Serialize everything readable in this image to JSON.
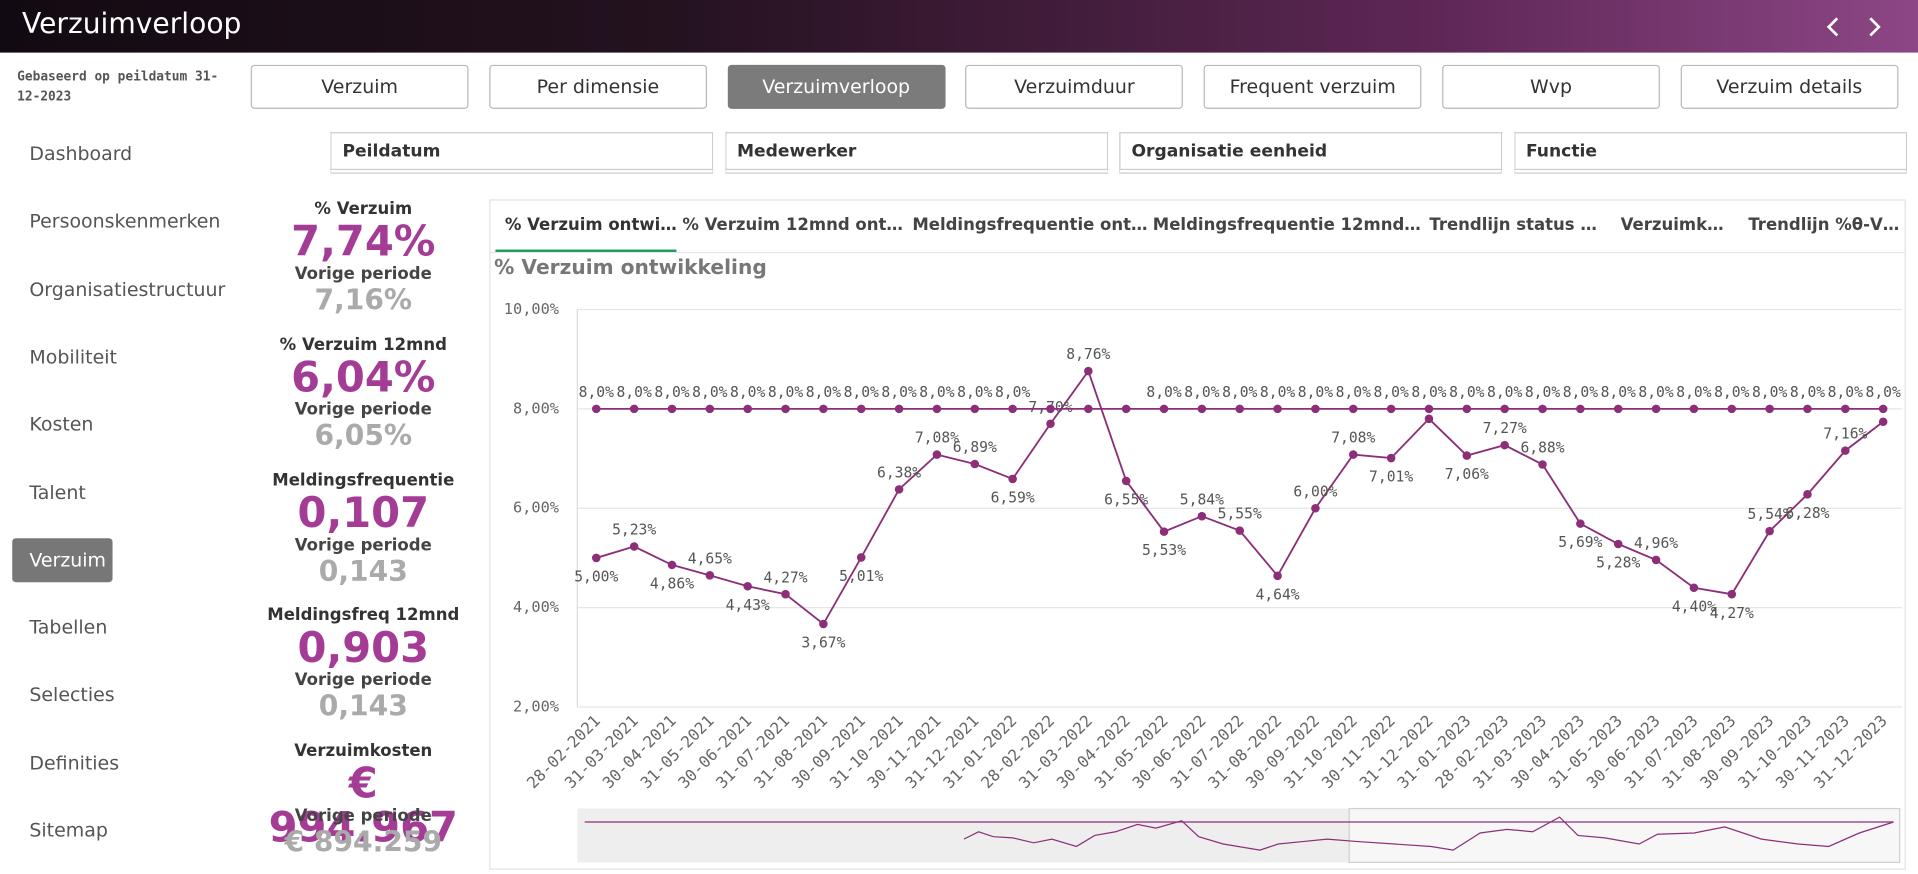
{
  "header": {
    "title": "Verzuimverloop"
  },
  "subheader": "Gebaseerd op peildatum 31-12-2023",
  "tabs": [
    {
      "label": "Verzuim",
      "active": false
    },
    {
      "label": "Per dimensie",
      "active": false
    },
    {
      "label": "Verzuimverloop",
      "active": true
    },
    {
      "label": "Verzuimduur",
      "active": false
    },
    {
      "label": "Frequent verzuim",
      "active": false
    },
    {
      "label": "Wvp",
      "active": false
    },
    {
      "label": "Verzuim details",
      "active": false
    }
  ],
  "sidebar": [
    {
      "label": "Dashboard",
      "active": false
    },
    {
      "label": "Persoonskenmerken",
      "active": false
    },
    {
      "label": "Organisatiestructuur",
      "active": false
    },
    {
      "label": "Mobiliteit",
      "active": false
    },
    {
      "label": "Kosten",
      "active": false
    },
    {
      "label": "Talent",
      "active": false
    },
    {
      "label": "Verzuim",
      "active": true
    },
    {
      "label": "Tabellen",
      "active": false
    },
    {
      "label": "Selecties",
      "active": false
    },
    {
      "label": "Definities",
      "active": false
    },
    {
      "label": "Sitemap",
      "active": false
    }
  ],
  "filters": [
    "Peildatum",
    "Medewerker",
    "Organisatie eenheid",
    "Functie"
  ],
  "kpis": [
    {
      "label": "% Verzuim",
      "value": "7,74%",
      "previous_label": "Vorige periode",
      "previous_value": "7,16%"
    },
    {
      "label": "% Verzuim 12mnd",
      "value": "6,04%",
      "previous_label": "Vorige periode",
      "previous_value": "6,05%"
    },
    {
      "label": "Meldingsfrequentie",
      "value": "0,107",
      "previous_label": "Vorige periode",
      "previous_value": "0,143"
    },
    {
      "label": "Meldingsfreq 12mnd",
      "value": "0,903",
      "previous_label": "Vorige periode",
      "previous_value": "0,143"
    },
    {
      "label": "Verzuimkosten",
      "value": "€ 994.967",
      "previous_label": "Vorige periode",
      "previous_value": "€ 894.259"
    }
  ],
  "chart_tabs": [
    {
      "label": "% Verzuim ontwi…",
      "active": true
    },
    {
      "label": "% Verzuim 12mnd ont…",
      "active": false
    },
    {
      "label": "Meldingsfrequentie ont…",
      "active": false
    },
    {
      "label": "Meldingsfrequentie 12mnd…",
      "active": false
    },
    {
      "label": "Trendlijn status …",
      "active": false
    },
    {
      "label": "Verzuimk…",
      "active": false
    },
    {
      "label": "Trendlijn %θ-V…",
      "active": false
    }
  ],
  "chart_data": {
    "type": "line",
    "title": "% Verzuim ontwikkeling",
    "categories": [
      "28-02-2021",
      "31-03-2021",
      "30-04-2021",
      "31-05-2021",
      "30-06-2021",
      "31-07-2021",
      "31-08-2021",
      "30-09-2021",
      "31-10-2021",
      "30-11-2021",
      "31-12-2021",
      "31-01-2022",
      "28-02-2022",
      "31-03-2022",
      "30-04-2022",
      "31-05-2022",
      "30-06-2022",
      "31-07-2022",
      "31-08-2022",
      "30-09-2022",
      "31-10-2022",
      "30-11-2022",
      "31-12-2022",
      "31-01-2023",
      "28-02-2023",
      "31-03-2023",
      "30-04-2023",
      "31-05-2023",
      "30-06-2023",
      "31-07-2023",
      "31-08-2023",
      "30-09-2023",
      "31-10-2023",
      "30-11-2023",
      "31-12-2023"
    ],
    "series": [
      {
        "color": "#8c2f78",
        "values": [
          5.0,
          5.23,
          4.86,
          4.65,
          4.43,
          4.27,
          3.67,
          5.01,
          6.38,
          7.08,
          6.89,
          6.59,
          7.7,
          8.76,
          6.55,
          5.53,
          5.84,
          5.55,
          4.64,
          6.0,
          7.08,
          7.01,
          7.8,
          7.06,
          7.27,
          6.88,
          5.69,
          5.28,
          4.96,
          4.4,
          4.27,
          5.54,
          6.28,
          7.16,
          7.74
        ],
        "value_labels": [
          "5,00%",
          "5,23%",
          "4,86%",
          "4,65%",
          "4,43%",
          "4,27%",
          "3,67%",
          "5,01%",
          "6,38%",
          "7,08%",
          "6,89%",
          "6,59%",
          "7,70%",
          "8,76%",
          "6,55%",
          "5,53%",
          "5,84%",
          "5,55%",
          "4,64%",
          "6,00%",
          "7,08%",
          "7,01%",
          null,
          "7,06%",
          "7,27%",
          "6,88%",
          "5,69%",
          "5,28%",
          "4,96%",
          "4,40%",
          "4,27%",
          "5,54%",
          "6,28%",
          "7,16%",
          null
        ]
      },
      {
        "color": "#8c2f78",
        "values": [
          8,
          8,
          8,
          8,
          8,
          8,
          8,
          8,
          8,
          8,
          8,
          8,
          8,
          8,
          8,
          8,
          8,
          8,
          8,
          8,
          8,
          8,
          8,
          8,
          8,
          8,
          8,
          8,
          8,
          8,
          8,
          8,
          8,
          8,
          8
        ],
        "value_labels": [
          "8,0%",
          "8,0%",
          "8,0%",
          "8,0%",
          "8,0%",
          "8,0%",
          "8,0%",
          "8,0%",
          "8,0%",
          "8,0%",
          "8,0%",
          "8,0%",
          null,
          null,
          null,
          "8,0%",
          "8,0%",
          "8,0%",
          "8,0%",
          "8,0%",
          "8,0%",
          "8,0%",
          "8,0%",
          "8,0%",
          "8,0%",
          "8,0%",
          "8,0%",
          "8,0%",
          "8,0%",
          "8,0%",
          "8,0%",
          "8,0%",
          "8,0%",
          "8,0%",
          "8,0%"
        ]
      }
    ],
    "ylim": [
      2,
      10
    ],
    "yticks": [
      {
        "value": 2,
        "label": "2,00%"
      },
      {
        "value": 4,
        "label": "4,00%"
      },
      {
        "value": 6,
        "label": "6,00%"
      },
      {
        "value": 8,
        "label": "8,00%"
      },
      {
        "value": 10,
        "label": "10,00%"
      }
    ],
    "grid": true
  }
}
